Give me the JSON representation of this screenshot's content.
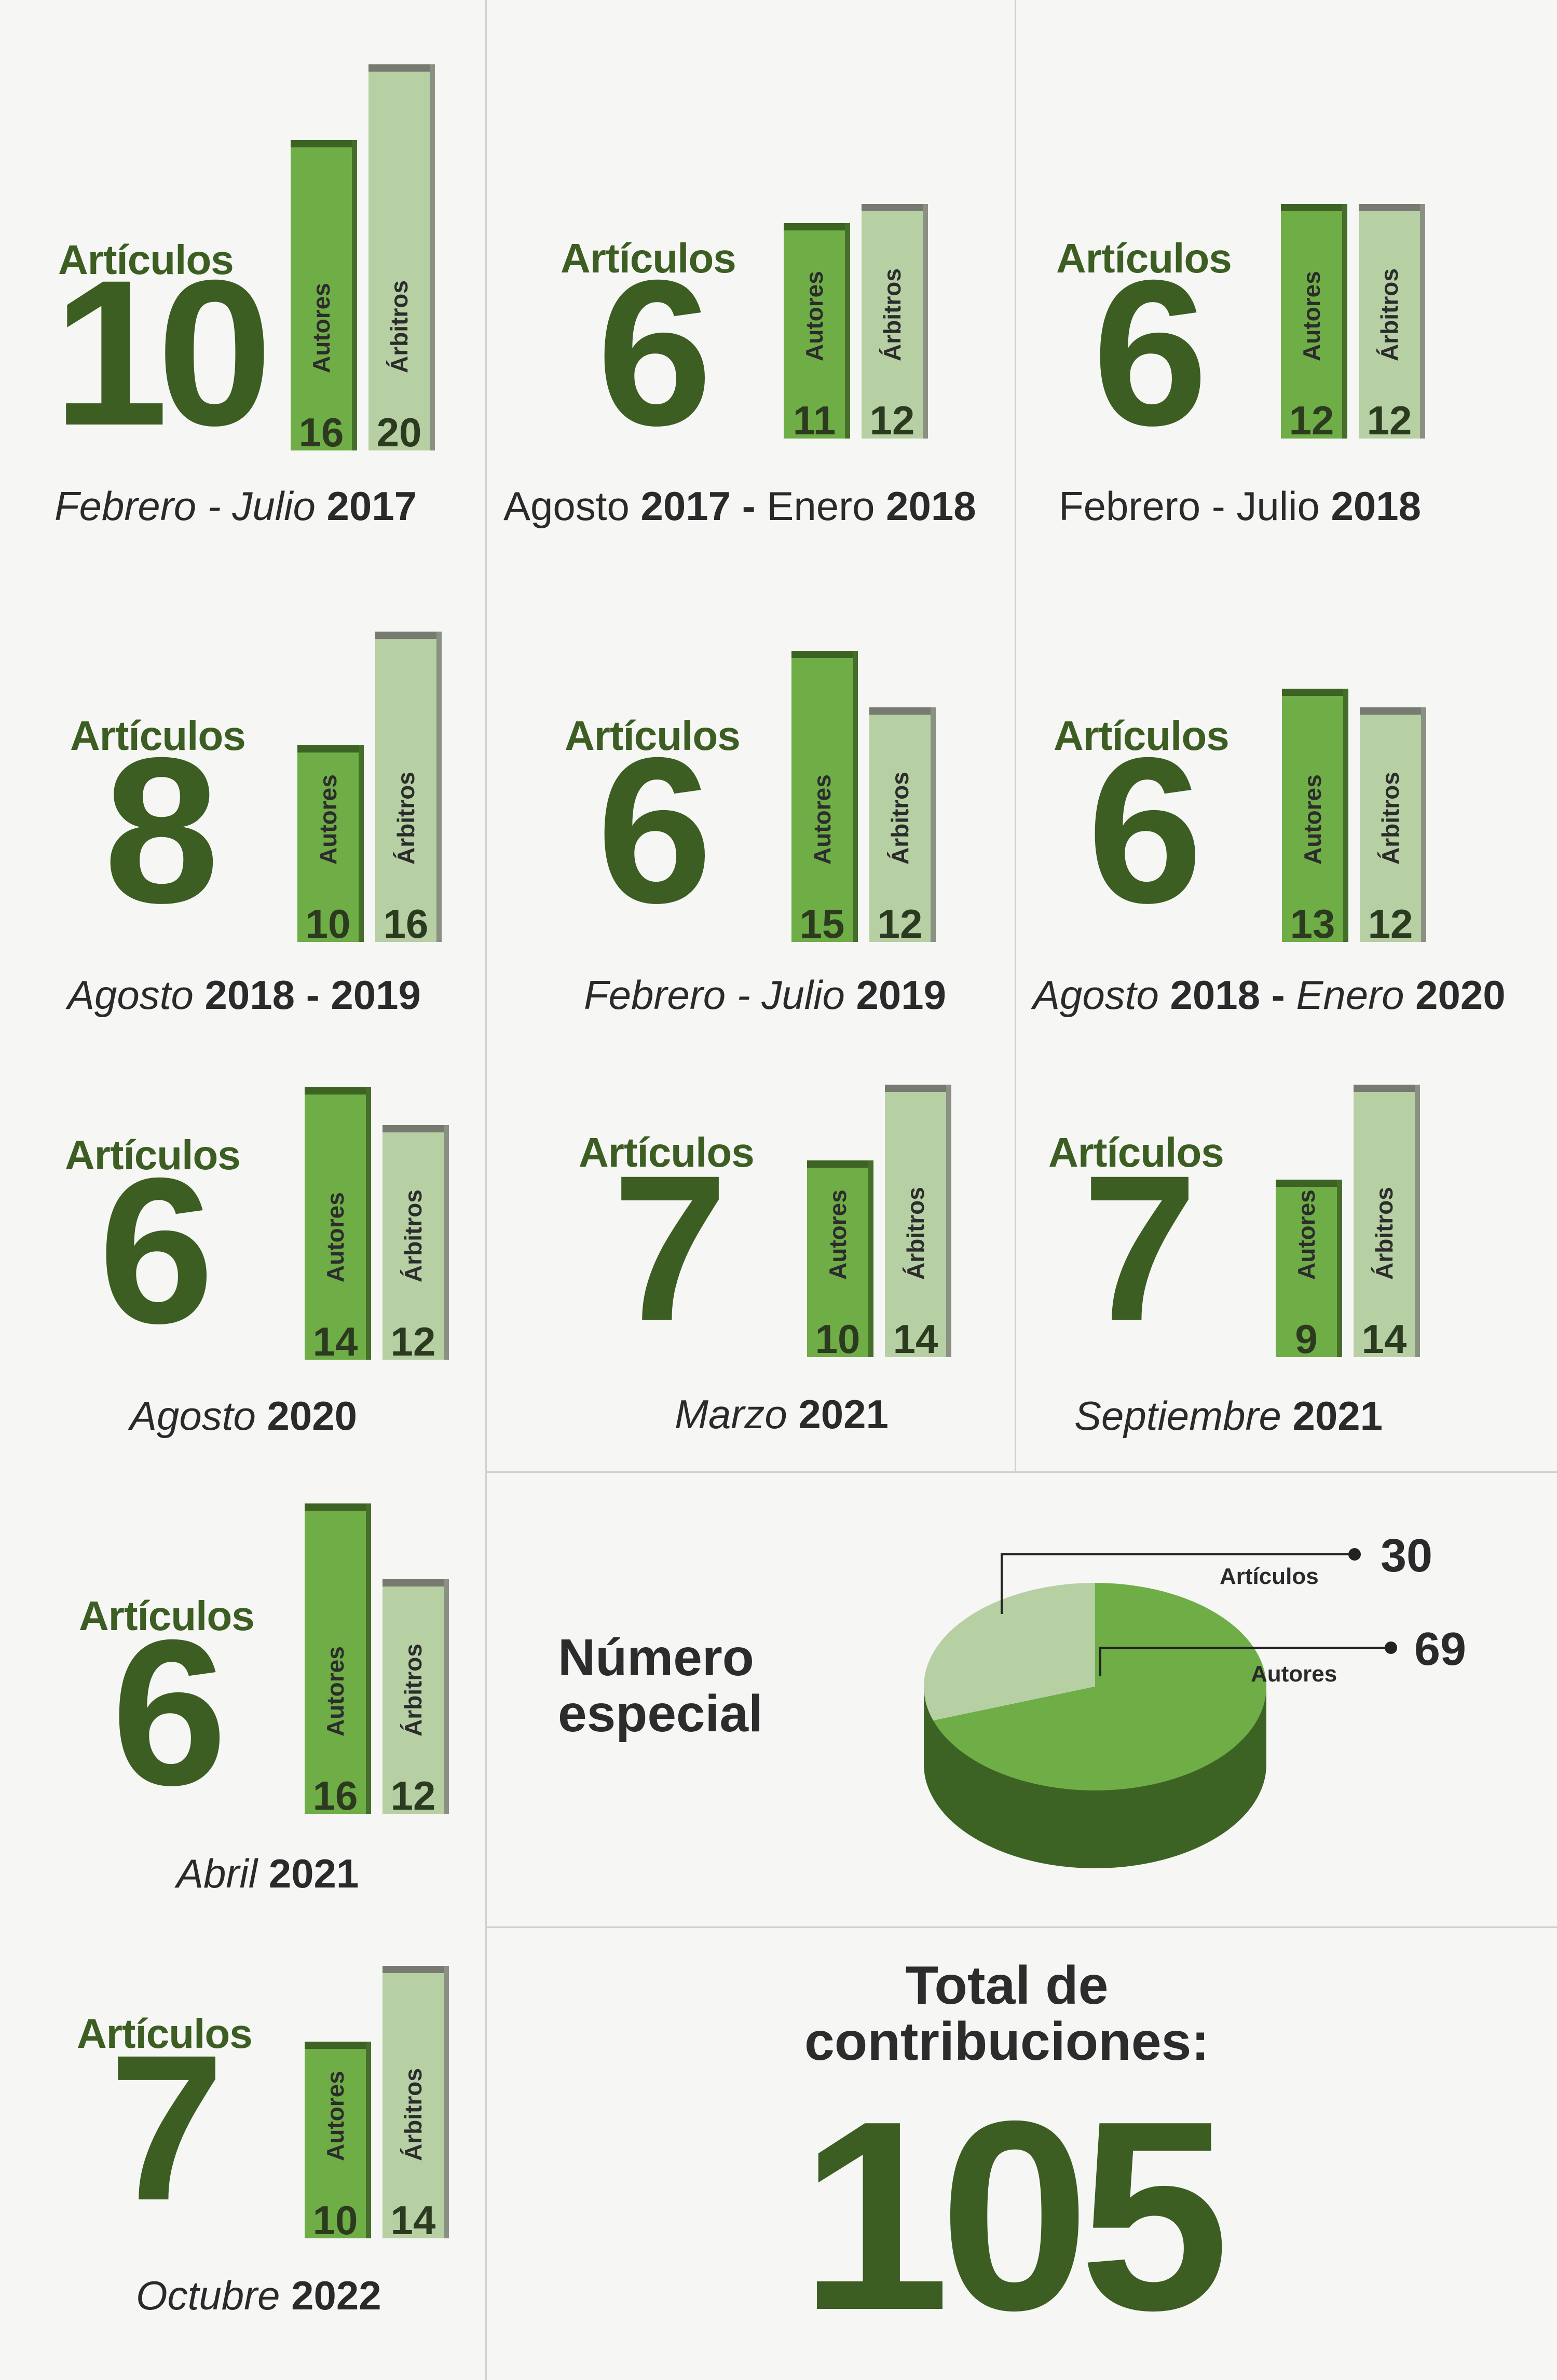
{
  "chart_data": [
    {
      "type": "bar",
      "label": "Artículos",
      "articles": "10",
      "period_parts": [
        {
          "text": "Febrero - Julio ",
          "bold": false
        },
        {
          "text": "2017",
          "bold": true
        }
      ],
      "upright": false,
      "categories": [
        "Autores",
        "Árbitros"
      ],
      "values": [
        16,
        20
      ]
    },
    {
      "type": "bar",
      "label": "Artículos",
      "articles": "6",
      "period_parts": [
        {
          "text": "Agosto ",
          "bold": false
        },
        {
          "text": "2017 - ",
          "bold": true
        },
        {
          "text": "Enero ",
          "bold": false
        },
        {
          "text": "2018",
          "bold": true
        }
      ],
      "upright": true,
      "categories": [
        "Autores",
        "Árbitros"
      ],
      "values": [
        11,
        12
      ]
    },
    {
      "type": "bar",
      "label": "Artículos",
      "articles": "6",
      "period_parts": [
        {
          "text": "Febrero - Julio ",
          "bold": false
        },
        {
          "text": "2018",
          "bold": true
        }
      ],
      "upright": true,
      "categories": [
        "Autores",
        "Árbitros"
      ],
      "values": [
        12,
        12
      ]
    },
    {
      "type": "bar",
      "label": "Artículos",
      "articles": "8",
      "period_parts": [
        {
          "text": "Agosto ",
          "bold": false
        },
        {
          "text": "2018 - 2019",
          "bold": true
        }
      ],
      "upright": false,
      "categories": [
        "Autores",
        "Árbitros"
      ],
      "values": [
        10,
        16
      ]
    },
    {
      "type": "bar",
      "label": "Artículos",
      "articles": "6",
      "period_parts": [
        {
          "text": "Febrero - Julio ",
          "bold": false
        },
        {
          "text": "2019",
          "bold": true
        }
      ],
      "upright": false,
      "categories": [
        "Autores",
        "Árbitros"
      ],
      "values": [
        15,
        12
      ]
    },
    {
      "type": "bar",
      "label": "Artículos",
      "articles": "6",
      "period_parts": [
        {
          "text": "Agosto ",
          "bold": false
        },
        {
          "text": "2018 - ",
          "bold": true
        },
        {
          "text": "Enero ",
          "bold": false
        },
        {
          "text": "2020",
          "bold": true
        }
      ],
      "upright": false,
      "categories": [
        "Autores",
        "Árbitros"
      ],
      "values": [
        13,
        12
      ]
    },
    {
      "type": "bar",
      "label": "Artículos",
      "articles": "6",
      "period_parts": [
        {
          "text": "Agosto ",
          "bold": false
        },
        {
          "text": "2020",
          "bold": true
        }
      ],
      "upright": false,
      "categories": [
        "Autores",
        "Árbitros"
      ],
      "values": [
        14,
        12
      ]
    },
    {
      "type": "bar",
      "label": "Artículos",
      "articles": "7",
      "period_parts": [
        {
          "text": "Marzo ",
          "bold": false
        },
        {
          "text": "2021",
          "bold": true
        }
      ],
      "upright": false,
      "categories": [
        "Autores",
        "Árbitros"
      ],
      "values": [
        10,
        14
      ]
    },
    {
      "type": "bar",
      "label": "Artículos",
      "articles": "7",
      "period_parts": [
        {
          "text": "Septiembre ",
          "bold": false
        },
        {
          "text": "2021",
          "bold": true
        }
      ],
      "upright": false,
      "categories": [
        "Autores",
        "Árbitros"
      ],
      "values": [
        9,
        14
      ]
    },
    {
      "type": "bar",
      "label": "Artículos",
      "articles": "6",
      "period_parts": [
        {
          "text": "Abril ",
          "bold": false
        },
        {
          "text": "2021",
          "bold": true
        }
      ],
      "upright": false,
      "categories": [
        "Autores",
        "Árbitros"
      ],
      "values": [
        16,
        12
      ]
    },
    {
      "type": "bar",
      "label": "Artículos",
      "articles": "7",
      "period_parts": [
        {
          "text": "Octubre ",
          "bold": false
        },
        {
          "text": "2022",
          "bold": true
        }
      ],
      "upright": false,
      "categories": [
        "Autores",
        "Árbitros"
      ],
      "values": [
        10,
        14
      ]
    },
    {
      "type": "pie",
      "title_lines": [
        "Número",
        "especial"
      ],
      "slices": [
        {
          "name": "Artículos",
          "value": 30,
          "color": "#b6d0a4"
        },
        {
          "name": "Autores",
          "value": 69,
          "color": "#6fad46"
        }
      ]
    }
  ],
  "total": {
    "title_lines": [
      "Total de",
      "contribuciones:"
    ],
    "value": "105"
  },
  "colors": {
    "dark_green": "#3c5e22",
    "autores": "#6fad46",
    "arbitros": "#b6d0a4"
  }
}
